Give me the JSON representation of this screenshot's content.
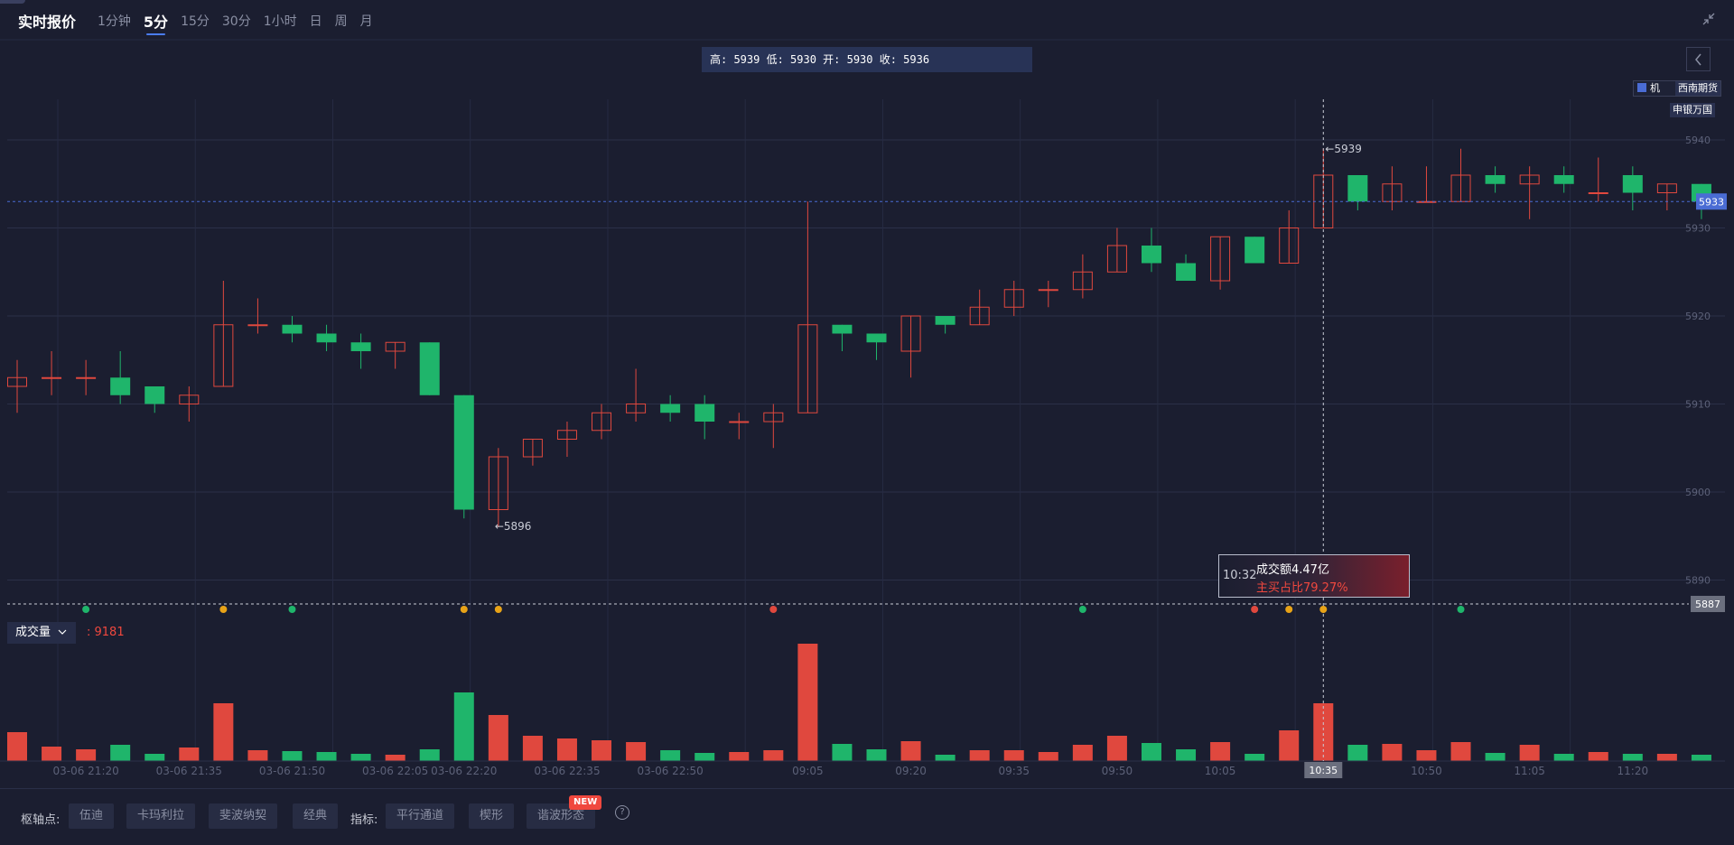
{
  "header": {
    "title": "实时报价",
    "tabs": [
      {
        "label": "1分钟",
        "active": false
      },
      {
        "label": "5分",
        "active": true
      },
      {
        "label": "15分",
        "active": false
      },
      {
        "label": "30分",
        "active": false
      },
      {
        "label": "1小时",
        "active": false
      },
      {
        "label": "日",
        "active": false
      },
      {
        "label": "周",
        "active": false
      },
      {
        "label": "月",
        "active": false
      }
    ],
    "shrink_icon": "compress-icon"
  },
  "ohlc": {
    "text": "高: 5939 低: 5930 开: 5930 收: 5936"
  },
  "brokers": {
    "item1": "西南期货",
    "item2": "申银万国",
    "item3": "机"
  },
  "colors": {
    "up": "#e0483e",
    "down": "#1fb56b",
    "bg": "#1b1e30",
    "price_tag": "#4a6cd4"
  },
  "tooltip": {
    "time": "10:32",
    "line1": "成交额4.47亿",
    "line2": "主买占比79.27%"
  },
  "volume": {
    "selector_label": "成交量",
    "value_text": ": 9181"
  },
  "bottom": {
    "pivot_label": "枢轴点:",
    "pivot_buttons": [
      "伍迪",
      "卡玛利拉",
      "斐波纳契",
      "经典"
    ],
    "indicator_label": "指标:",
    "indicator_buttons": [
      "平行通道",
      "楔形",
      "谐波形态"
    ],
    "new_badge": "NEW",
    "help": "?"
  },
  "chart_data": {
    "type": "candlestick",
    "price_axis": {
      "ticks": [
        5890,
        5900,
        5910,
        5920,
        5930,
        5940
      ]
    },
    "current_price": 5933,
    "low_line_price": 5887,
    "crosshair_time": "10:35",
    "annotations": {
      "high_label": "5939",
      "low_label": "5896"
    },
    "time_labels": [
      "03-06 21:20",
      "03-06 21:35",
      "03-06 21:50",
      "03-06 22:05",
      "03-06 22:20",
      "03-06 22:35",
      "03-06 22:50",
      "09:05",
      "09:20",
      "09:35",
      "09:50",
      "10:05",
      "10:35",
      "10:50",
      "11:05",
      "11:20"
    ],
    "candles": [
      {
        "o": 5912,
        "h": 5915,
        "l": 5909,
        "c": 5913
      },
      {
        "o": 5913,
        "h": 5916,
        "l": 5911,
        "c": 5913
      },
      {
        "o": 5913,
        "h": 5915,
        "l": 5911,
        "c": 5913
      },
      {
        "o": 5913,
        "h": 5916,
        "l": 5910,
        "c": 5911
      },
      {
        "o": 5912,
        "h": 5912,
        "l": 5909,
        "c": 5910
      },
      {
        "o": 5910,
        "h": 5912,
        "l": 5908,
        "c": 5911
      },
      {
        "o": 5912,
        "h": 5924,
        "l": 5912,
        "c": 5919
      },
      {
        "o": 5919,
        "h": 5922,
        "l": 5918,
        "c": 5919
      },
      {
        "o": 5919,
        "h": 5920,
        "l": 5917,
        "c": 5918
      },
      {
        "o": 5918,
        "h": 5919,
        "l": 5916,
        "c": 5917
      },
      {
        "o": 5917,
        "h": 5918,
        "l": 5914,
        "c": 5916
      },
      {
        "o": 5916,
        "h": 5917,
        "l": 5914,
        "c": 5917
      },
      {
        "o": 5917,
        "h": 5917,
        "l": 5911,
        "c": 5911
      },
      {
        "o": 5911,
        "h": 5911,
        "l": 5897,
        "c": 5898
      },
      {
        "o": 5898,
        "h": 5905,
        "l": 5896,
        "c": 5904
      },
      {
        "o": 5904,
        "h": 5906,
        "l": 5903,
        "c": 5906
      },
      {
        "o": 5906,
        "h": 5908,
        "l": 5904,
        "c": 5907
      },
      {
        "o": 5907,
        "h": 5910,
        "l": 5906,
        "c": 5909
      },
      {
        "o": 5909,
        "h": 5914,
        "l": 5908,
        "c": 5910
      },
      {
        "o": 5910,
        "h": 5911,
        "l": 5908,
        "c": 5909
      },
      {
        "o": 5910,
        "h": 5911,
        "l": 5906,
        "c": 5908
      },
      {
        "o": 5908,
        "h": 5909,
        "l": 5906,
        "c": 5908
      },
      {
        "o": 5908,
        "h": 5910,
        "l": 5905,
        "c": 5909
      },
      {
        "o": 5909,
        "h": 5933,
        "l": 5909,
        "c": 5919
      },
      {
        "o": 5919,
        "h": 5919,
        "l": 5916,
        "c": 5918
      },
      {
        "o": 5918,
        "h": 5918,
        "l": 5915,
        "c": 5917
      },
      {
        "o": 5916,
        "h": 5920,
        "l": 5913,
        "c": 5920
      },
      {
        "o": 5920,
        "h": 5920,
        "l": 5918,
        "c": 5919
      },
      {
        "o": 5919,
        "h": 5923,
        "l": 5919,
        "c": 5921
      },
      {
        "o": 5921,
        "h": 5924,
        "l": 5920,
        "c": 5923
      },
      {
        "o": 5923,
        "h": 5924,
        "l": 5921,
        "c": 5923
      },
      {
        "o": 5923,
        "h": 5927,
        "l": 5922,
        "c": 5925
      },
      {
        "o": 5925,
        "h": 5930,
        "l": 5925,
        "c": 5928
      },
      {
        "o": 5928,
        "h": 5930,
        "l": 5925,
        "c": 5926
      },
      {
        "o": 5926,
        "h": 5927,
        "l": 5924,
        "c": 5924
      },
      {
        "o": 5924,
        "h": 5929,
        "l": 5923,
        "c": 5929
      },
      {
        "o": 5929,
        "h": 5929,
        "l": 5926,
        "c": 5926
      },
      {
        "o": 5926,
        "h": 5932,
        "l": 5926,
        "c": 5930
      },
      {
        "o": 5930,
        "h": 5939,
        "l": 5930,
        "c": 5936
      },
      {
        "o": 5936,
        "h": 5936,
        "l": 5932,
        "c": 5933
      },
      {
        "o": 5933,
        "h": 5937,
        "l": 5932,
        "c": 5935
      },
      {
        "o": 5933,
        "h": 5937,
        "l": 5933,
        "c": 5933
      },
      {
        "o": 5933,
        "h": 5939,
        "l": 5933,
        "c": 5936
      },
      {
        "o": 5936,
        "h": 5937,
        "l": 5934,
        "c": 5935
      },
      {
        "o": 5935,
        "h": 5937,
        "l": 5931,
        "c": 5936
      },
      {
        "o": 5936,
        "h": 5937,
        "l": 5934,
        "c": 5935
      },
      {
        "o": 5934,
        "h": 5938,
        "l": 5933,
        "c": 5934
      },
      {
        "o": 5936,
        "h": 5937,
        "l": 5932,
        "c": 5934
      },
      {
        "o": 5934,
        "h": 5935,
        "l": 5932,
        "c": 5935
      },
      {
        "o": 5935,
        "h": 5935,
        "l": 5931,
        "c": 5933
      }
    ],
    "volumes": [
      3200,
      1600,
      1300,
      1800,
      800,
      1500,
      6400,
      1200,
      1100,
      1000,
      800,
      700,
      1300,
      7600,
      5100,
      2800,
      2500,
      2300,
      2100,
      1200,
      900,
      1000,
      1200,
      13000,
      1900,
      1300,
      2200,
      700,
      1200,
      1200,
      1000,
      1800,
      2800,
      2000,
      1300,
      2100,
      800,
      3400,
      6400,
      1800,
      1900,
      1200,
      2100,
      900,
      1800,
      800,
      1000,
      800,
      800,
      700
    ]
  }
}
